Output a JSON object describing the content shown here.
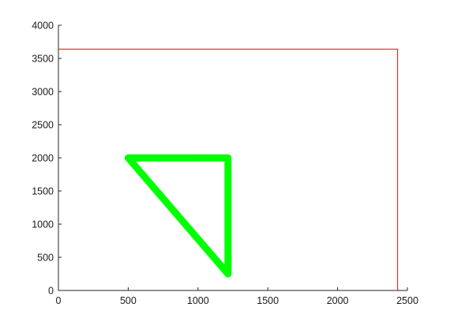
{
  "chart_data": {
    "type": "line",
    "title": "",
    "xlabel": "",
    "ylabel": "",
    "xlim": [
      0,
      2500
    ],
    "ylim": [
      0,
      4000
    ],
    "x_ticks": [
      0,
      500,
      1000,
      1500,
      2000,
      2500
    ],
    "y_ticks": [
      0,
      500,
      1000,
      1500,
      2000,
      2500,
      3000,
      3500,
      4000
    ],
    "grid": false,
    "box": false,
    "series": [
      {
        "color": "#ff0000",
        "style": "thin line",
        "x": [
          0,
          2430,
          2430,
          0,
          0
        ],
        "y": [
          0,
          0,
          3640,
          3640,
          0
        ]
      },
      {
        "color": "#00ff00",
        "style": "thick star markers",
        "x": [
          500,
          1215,
          1215,
          500
        ],
        "y": [
          2000,
          2000,
          250,
          2000
        ]
      }
    ]
  }
}
